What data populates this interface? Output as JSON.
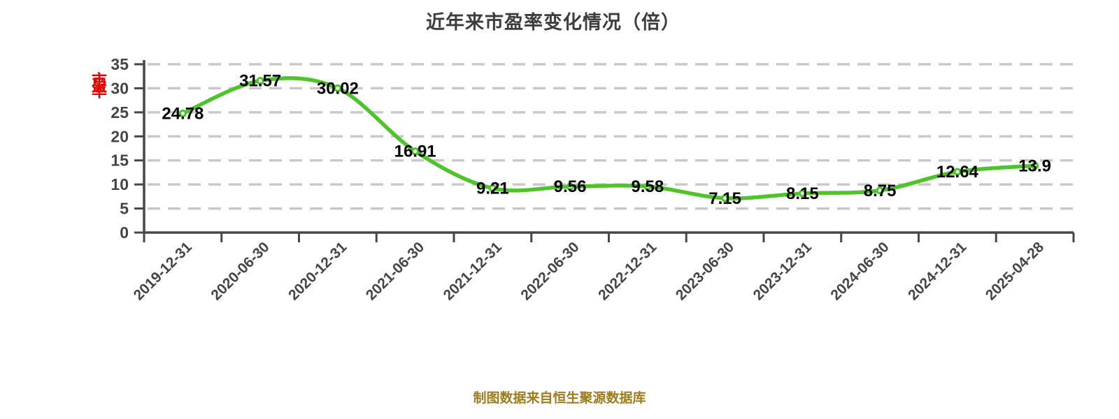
{
  "title": "近年来市盈率变化情况（倍）",
  "y_axis_label": "市盈率",
  "source_note": "制图数据来自恒生聚源数据库",
  "colors": {
    "line": "#4fc32a",
    "marker_fill": "#ffffff",
    "grid": "#c9c9c9",
    "axis": "#474747",
    "tick_text": "#454545",
    "title_text": "#3d3d3d",
    "value_text": "#000000",
    "source_text": "#9c7c1c",
    "y_label_text": "#e60000"
  },
  "chart_data": {
    "type": "line",
    "title": "近年来市盈率变化情况（倍）",
    "categories": [
      "2019-12-31",
      "2020-06-30",
      "2020-12-31",
      "2021-06-30",
      "2021-12-31",
      "2022-06-30",
      "2022-12-31",
      "2023-06-30",
      "2023-12-31",
      "2024-06-30",
      "2024-12-31",
      "2025-04-28"
    ],
    "values": [
      24.78,
      31.57,
      30.02,
      16.91,
      9.21,
      9.56,
      9.58,
      7.15,
      8.15,
      8.75,
      12.64,
      13.9
    ],
    "xlabel": "",
    "ylabel": "市盈率",
    "ylim": [
      0,
      35
    ],
    "ytick_step": 5,
    "grid": "horizontal-dashed",
    "legend": "none",
    "marker": "circle-white-green-ring",
    "value_labels": "centered-on-points",
    "x_label_rotation_deg": -45
  }
}
